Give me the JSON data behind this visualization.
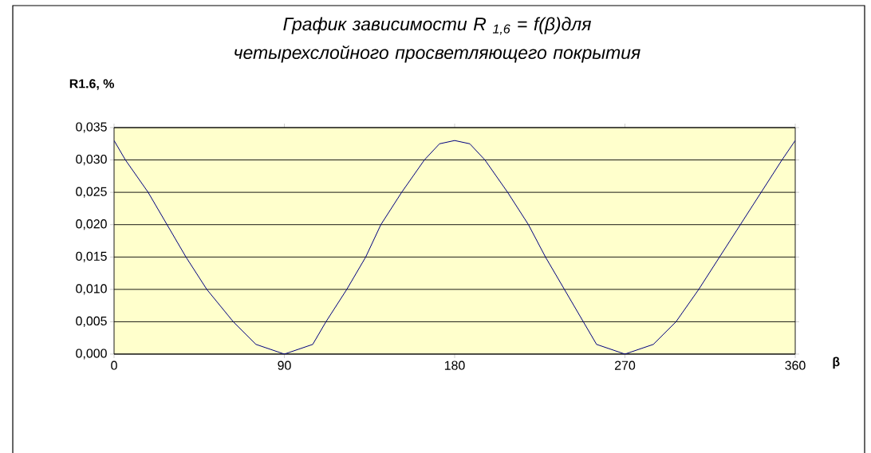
{
  "chart_data": {
    "type": "line",
    "title": "*График зависимости R $_{1,6}$ = f(β)для четырехслойного просветляющего покрытия*",
    "xlabel": "β",
    "ylabel": "R1.6, %",
    "x": [
      0,
      6,
      18,
      28,
      38,
      49,
      63,
      75,
      90,
      105,
      112,
      123,
      133,
      141,
      152,
      164,
      172,
      180,
      188,
      196,
      208,
      219,
      228,
      238,
      248,
      255,
      270,
      285,
      297,
      309,
      320,
      331,
      342,
      353,
      360
    ],
    "values": [
      0.033,
      0.03,
      0.025,
      0.02,
      0.015,
      0.01,
      0.005,
      0.0015,
      0.0,
      0.0015,
      0.005,
      0.01,
      0.015,
      0.02,
      0.025,
      0.03,
      0.0325,
      0.033,
      0.0325,
      0.03,
      0.025,
      0.02,
      0.015,
      0.01,
      0.005,
      0.0015,
      0.0,
      0.0015,
      0.005,
      0.01,
      0.015,
      0.02,
      0.025,
      0.03,
      0.033
    ],
    "color": "#000080",
    "line_style": "solid",
    "marker": "none",
    "xlim": [
      0,
      360
    ],
    "xticks": [
      0,
      90,
      180,
      270,
      360
    ],
    "ylim": [
      0,
      0.035
    ],
    "yticks": [
      {
        "value": 0,
        "label": "0,000"
      },
      {
        "value": 0.005,
        "label": "0,005"
      },
      {
        "value": 0.01,
        "label": "0,010"
      },
      {
        "value": 0.015,
        "label": "0,015"
      },
      {
        "value": 0.02,
        "label": "0,020"
      },
      {
        "value": 0.025,
        "label": "0,025"
      },
      {
        "value": 0.03,
        "label": "0,030"
      },
      {
        "value": 0.035,
        "label": "0,035"
      }
    ],
    "grid": "y"
  }
}
